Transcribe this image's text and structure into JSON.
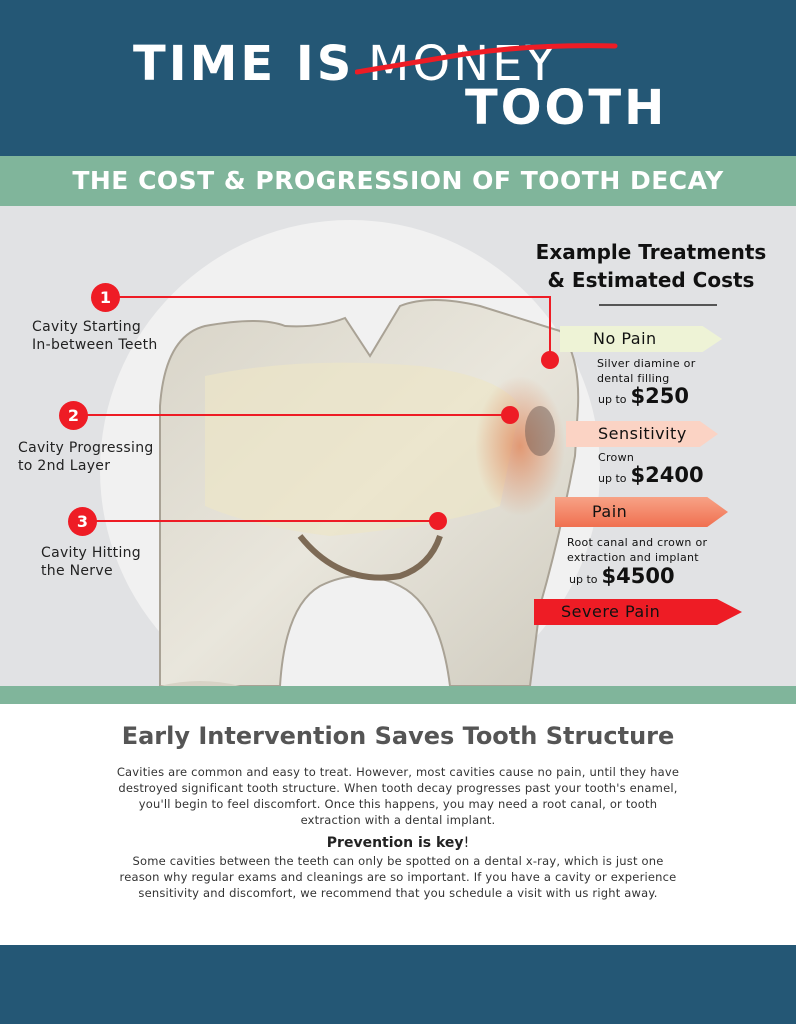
{
  "header": {
    "line1a": "TIME IS",
    "line1b": "MONEY",
    "line2": "TOOTH"
  },
  "banner": "THE COST & PROGRESSION OF TOOTH DECAY",
  "treatments": {
    "heading1": "Example Treatments",
    "heading2": "& Estimated Costs",
    "stages": [
      {
        "label": "No Pain",
        "color": "#eef3d6",
        "desc1": "Silver diamine or",
        "desc2": "dental filling",
        "prefix": "up to",
        "cost": "$250"
      },
      {
        "label": "Sensitivity",
        "color": "#fbd3c4",
        "desc1": "Crown",
        "desc2": "",
        "prefix": "up to",
        "cost": "$2400"
      },
      {
        "label": "Pain",
        "color": "#f38864",
        "desc1": "Root canal and crown or",
        "desc2": "extraction and implant",
        "prefix": "up to",
        "cost": "$4500"
      },
      {
        "label": "Severe Pain",
        "color": "#ee1c25"
      }
    ]
  },
  "markers": [
    {
      "num": "1",
      "line1": "Cavity Starting",
      "line2": "In-between Teeth"
    },
    {
      "num": "2",
      "line1": "Cavity Progressing",
      "line2": "to 2nd Layer"
    },
    {
      "num": "3",
      "line1": "Cavity Hitting",
      "line2": "the Nerve"
    }
  ],
  "info": {
    "heading": "Early Intervention Saves Tooth Structure",
    "p1": "Cavities are common and easy to treat. However, most cavities cause no pain, until they have destroyed significant tooth structure. When tooth decay progresses past your tooth's enamel, you'll begin to feel discomfort. Once this happens, you may need a root canal, or tooth extraction with a dental implant.",
    "sub": "Prevention is key",
    "sub_punct": "!",
    "p2": "Some cavities between the teeth can only be spotted on a dental x-ray, which is just one reason why regular exams and cleanings are so important. If you have a cavity or experience sensitivity and discomfort, we recommend that you schedule a visit with us right away."
  },
  "colors": {
    "navy": "#245775",
    "green": "#80b59b",
    "red": "#ee1c25"
  }
}
